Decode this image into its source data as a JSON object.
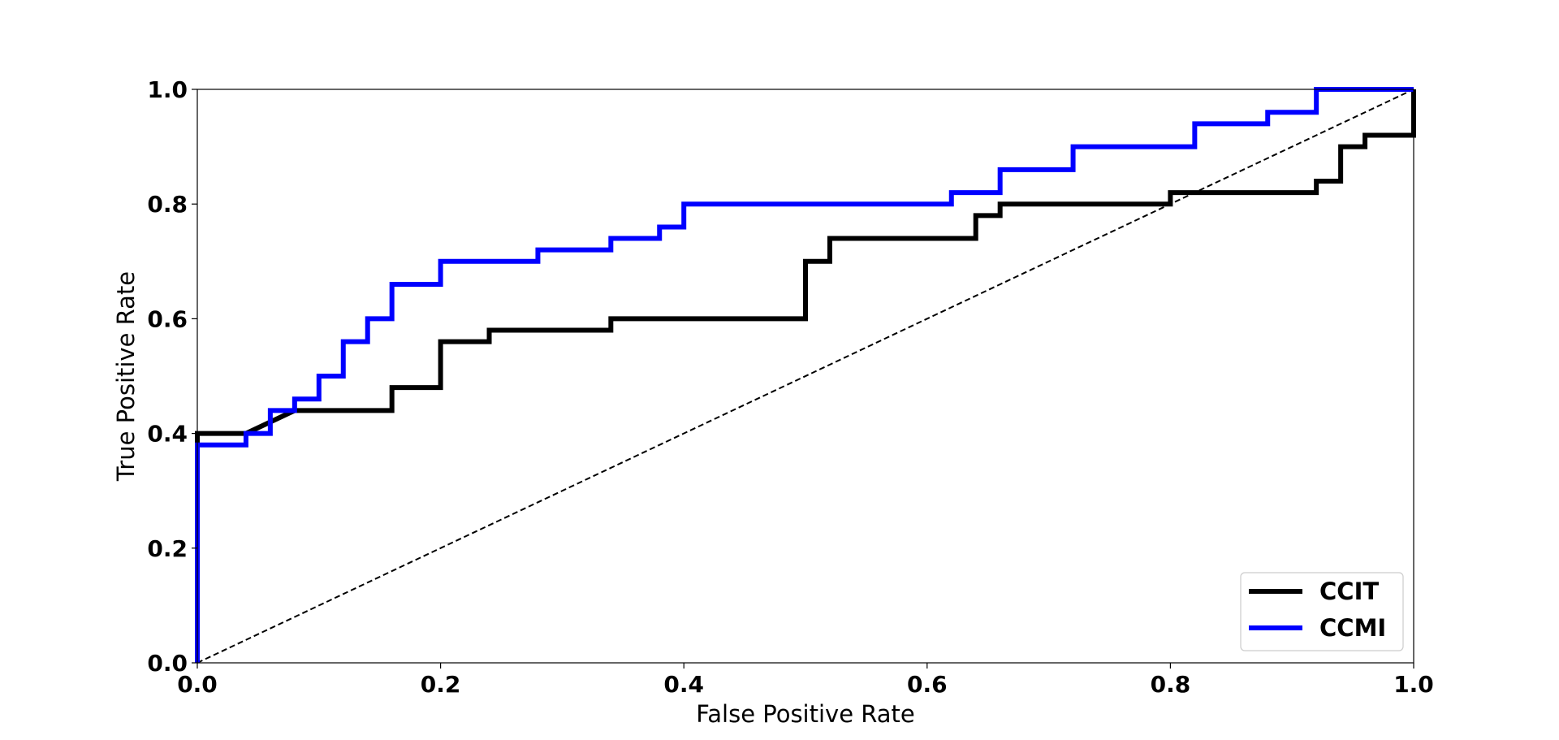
{
  "chart_data": {
    "type": "line",
    "title": "",
    "xlabel": "False Positive Rate",
    "ylabel": "True Positive Rate",
    "xlim": [
      0.0,
      1.0
    ],
    "ylim": [
      0.0,
      1.0
    ],
    "xticks": [
      "0.0",
      "0.2",
      "0.4",
      "0.6",
      "0.8",
      "1.0"
    ],
    "yticks": [
      "0.0",
      "0.2",
      "0.4",
      "0.6",
      "0.8",
      "1.0"
    ],
    "grid": false,
    "legend_position": "lower-right",
    "reference_line": {
      "style": "dashed",
      "color": "#000000",
      "x": [
        0,
        1
      ],
      "y": [
        0,
        1
      ]
    },
    "series": [
      {
        "name": "CCIT",
        "color": "#000000",
        "x": [
          0.0,
          0.0,
          0.04,
          0.08,
          0.16,
          0.16,
          0.2,
          0.2,
          0.24,
          0.24,
          0.34,
          0.34,
          0.5,
          0.5,
          0.52,
          0.52,
          0.64,
          0.64,
          0.66,
          0.66,
          0.8,
          0.8,
          0.92,
          0.92,
          0.94,
          0.94,
          0.96,
          0.96,
          1.0,
          1.0
        ],
        "y": [
          0.0,
          0.4,
          0.4,
          0.44,
          0.44,
          0.48,
          0.48,
          0.56,
          0.56,
          0.58,
          0.58,
          0.6,
          0.6,
          0.7,
          0.7,
          0.74,
          0.74,
          0.78,
          0.78,
          0.8,
          0.8,
          0.82,
          0.82,
          0.84,
          0.84,
          0.9,
          0.9,
          0.92,
          0.92,
          1.0
        ]
      },
      {
        "name": "CCMI",
        "color": "#0000ff",
        "x": [
          0.0,
          0.0,
          0.04,
          0.04,
          0.06,
          0.06,
          0.08,
          0.08,
          0.1,
          0.1,
          0.12,
          0.12,
          0.14,
          0.14,
          0.16,
          0.16,
          0.2,
          0.2,
          0.28,
          0.28,
          0.34,
          0.34,
          0.38,
          0.38,
          0.4,
          0.4,
          0.62,
          0.62,
          0.66,
          0.66,
          0.72,
          0.72,
          0.82,
          0.82,
          0.88,
          0.88,
          0.92,
          0.92,
          1.0
        ],
        "y": [
          0.0,
          0.38,
          0.38,
          0.4,
          0.4,
          0.44,
          0.44,
          0.46,
          0.46,
          0.5,
          0.5,
          0.56,
          0.56,
          0.6,
          0.6,
          0.66,
          0.66,
          0.7,
          0.7,
          0.72,
          0.72,
          0.74,
          0.74,
          0.76,
          0.76,
          0.8,
          0.8,
          0.82,
          0.82,
          0.86,
          0.86,
          0.9,
          0.9,
          0.94,
          0.94,
          0.96,
          0.96,
          1.0,
          1.0
        ]
      }
    ]
  }
}
